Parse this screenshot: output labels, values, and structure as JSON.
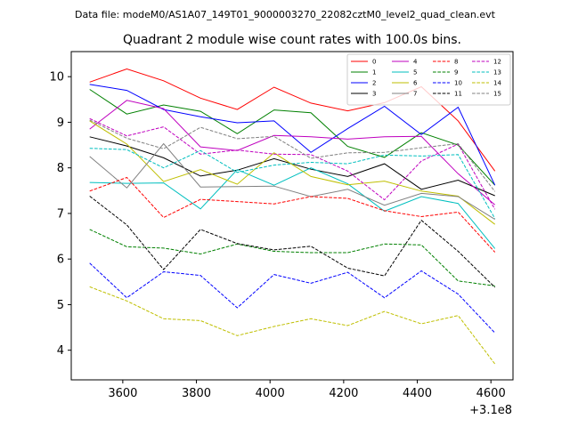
{
  "header": {
    "data_file": "Data file: modeM0/AS1A07_149T01_9000003270_22082cztM0_level2_quad_clean.evt"
  },
  "chart_data": {
    "type": "line",
    "title": "Quadrant 2 module wise count rates with 100.0s bins.",
    "xlabel": "",
    "ylabel": "",
    "x_offset_label": "+3.1e8",
    "xlim": [
      3460,
      4660
    ],
    "ylim": [
      3.35,
      10.55
    ],
    "x_ticks": [
      3600,
      3800,
      4000,
      4200,
      4400,
      4600
    ],
    "y_ticks": [
      4,
      5,
      6,
      7,
      8,
      9,
      10
    ],
    "grid": false,
    "legend_position": "top-right",
    "x": [
      3510,
      3611,
      3711,
      3811,
      3911,
      4011,
      4111,
      4211,
      4311,
      4411,
      4511,
      4611
    ],
    "series": [
      {
        "name": "0",
        "color": "#ff0000",
        "dash": "solid",
        "values": [
          9.88,
          10.17,
          9.91,
          9.53,
          9.28,
          9.77,
          9.42,
          9.25,
          9.43,
          9.78,
          9.03,
          7.93
        ]
      },
      {
        "name": "1",
        "color": "#008000",
        "dash": "solid",
        "values": [
          9.72,
          9.18,
          9.38,
          9.24,
          8.75,
          9.27,
          9.21,
          8.47,
          8.23,
          8.77,
          8.5,
          7.62
        ]
      },
      {
        "name": "2",
        "color": "#0000ff",
        "dash": "solid",
        "values": [
          9.83,
          9.7,
          9.28,
          9.12,
          8.99,
          9.03,
          8.34,
          8.86,
          9.35,
          8.73,
          9.33,
          7.62
        ]
      },
      {
        "name": "3",
        "color": "#000000",
        "dash": "solid",
        "values": [
          8.68,
          8.48,
          8.22,
          7.82,
          7.95,
          8.2,
          7.97,
          7.81,
          8.09,
          7.53,
          7.73,
          7.39
        ]
      },
      {
        "name": "4",
        "color": "#bf00bf",
        "dash": "solid",
        "values": [
          8.85,
          9.48,
          9.3,
          8.46,
          8.38,
          8.71,
          8.68,
          8.63,
          8.68,
          8.69,
          7.87,
          7.19
        ]
      },
      {
        "name": "5",
        "color": "#00bfbf",
        "dash": "solid",
        "values": [
          7.68,
          7.66,
          7.67,
          7.1,
          7.96,
          7.62,
          8.0,
          7.65,
          7.05,
          7.37,
          7.22,
          6.23
        ]
      },
      {
        "name": "6",
        "color": "#bfbf00",
        "dash": "solid",
        "values": [
          9.03,
          8.52,
          7.7,
          7.96,
          7.64,
          8.33,
          7.81,
          7.63,
          7.71,
          7.49,
          7.38,
          6.76
        ]
      },
      {
        "name": "7",
        "color": "#808080",
        "dash": "solid",
        "values": [
          8.25,
          7.56,
          8.53,
          7.58,
          7.59,
          7.6,
          7.37,
          7.53,
          7.18,
          7.44,
          7.37,
          6.87
        ]
      },
      {
        "name": "8",
        "color": "#ff0000",
        "dash": "dashed",
        "values": [
          7.49,
          7.79,
          6.91,
          7.31,
          7.26,
          7.21,
          7.37,
          7.33,
          7.06,
          6.93,
          7.03,
          6.15
        ]
      },
      {
        "name": "9",
        "color": "#008000",
        "dash": "dashed",
        "values": [
          6.65,
          6.27,
          6.24,
          6.11,
          6.33,
          6.17,
          6.14,
          6.14,
          6.33,
          6.31,
          5.52,
          5.41
        ]
      },
      {
        "name": "10",
        "color": "#0000ff",
        "dash": "dashed",
        "values": [
          5.91,
          5.15,
          5.72,
          5.64,
          4.93,
          5.66,
          5.47,
          5.71,
          5.15,
          5.74,
          5.23,
          4.38
        ]
      },
      {
        "name": "11",
        "color": "#000000",
        "dash": "dashed",
        "values": [
          7.38,
          6.75,
          5.77,
          6.65,
          6.34,
          6.2,
          6.28,
          5.8,
          5.63,
          6.85,
          6.17,
          5.38
        ]
      },
      {
        "name": "12",
        "color": "#bf00bf",
        "dash": "dashed",
        "values": [
          9.08,
          8.7,
          8.9,
          8.3,
          8.39,
          8.3,
          8.29,
          7.93,
          7.3,
          8.15,
          8.52,
          7.09
        ]
      },
      {
        "name": "13",
        "color": "#00bfbf",
        "dash": "dashed",
        "values": [
          8.43,
          8.4,
          8.0,
          8.38,
          7.9,
          8.06,
          8.12,
          8.09,
          8.28,
          8.26,
          8.29,
          6.89
        ]
      },
      {
        "name": "14",
        "color": "#bfbf00",
        "dash": "dashed",
        "values": [
          5.39,
          5.08,
          4.69,
          4.65,
          4.32,
          4.52,
          4.69,
          4.54,
          4.85,
          4.58,
          4.76,
          3.7
        ]
      },
      {
        "name": "15",
        "color": "#808080",
        "dash": "dashed",
        "values": [
          9.05,
          8.65,
          8.42,
          8.89,
          8.64,
          8.69,
          8.21,
          8.33,
          8.34,
          8.44,
          8.53,
          7.48
        ]
      }
    ]
  }
}
